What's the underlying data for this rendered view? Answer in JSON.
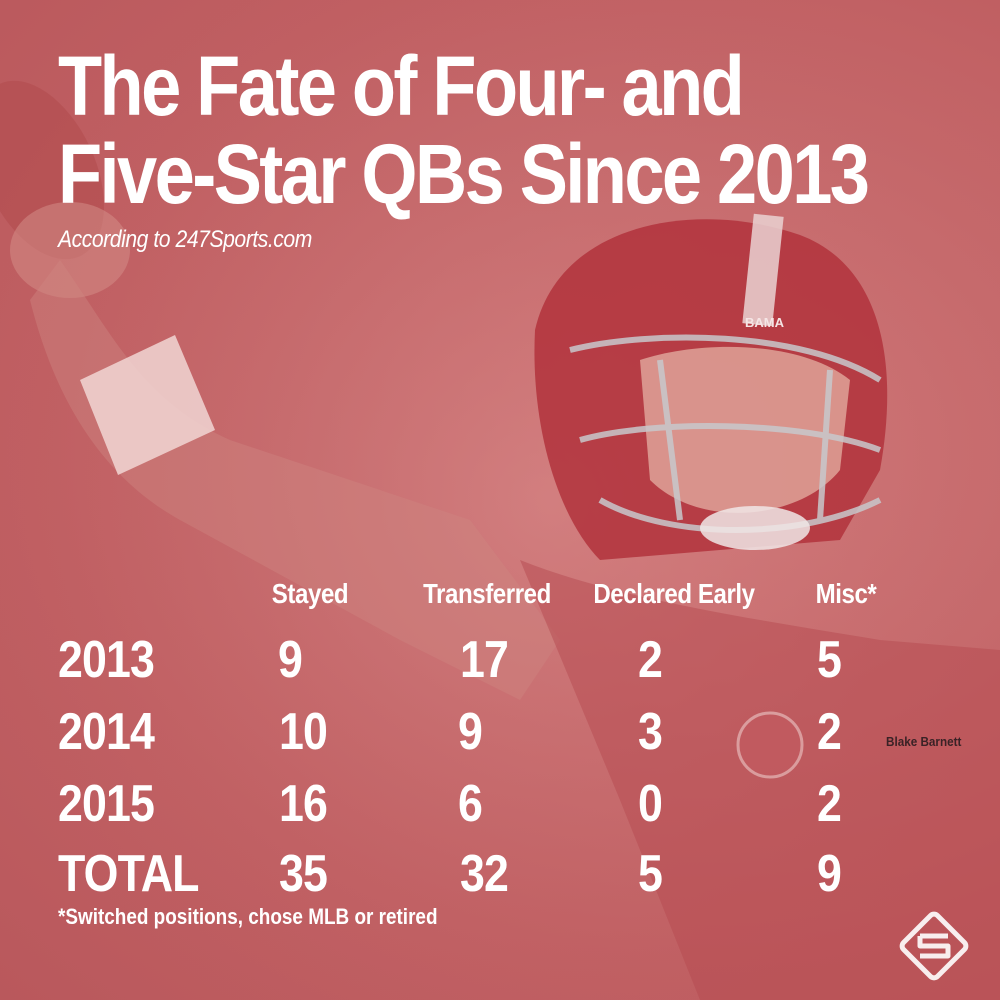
{
  "title_line1": "The Fate of Four- and",
  "title_line2": "Five-Star QBs Since 2013",
  "subtitle": "According to 247Sports.com",
  "photo_credit": "Blake Barnett",
  "footnote": "*Switched positions, chose MLB or retired",
  "helmet_text": "BAMA",
  "colors": {
    "background": "#c66a6c",
    "text": "#ffffff",
    "helmet": "#b2333c"
  },
  "chart_data": {
    "type": "table",
    "columns": [
      "Stayed",
      "Transferred",
      "Declared Early",
      "Misc*"
    ],
    "rows": [
      {
        "label": "2013",
        "values": [
          "9",
          "17",
          "2",
          "5"
        ]
      },
      {
        "label": "2014",
        "values": [
          "10",
          "9",
          "3",
          "2"
        ]
      },
      {
        "label": "2015",
        "values": [
          "16",
          "6",
          "0",
          "2"
        ]
      },
      {
        "label": "TOTAL",
        "values": [
          "35",
          "32",
          "5",
          "9"
        ]
      }
    ]
  }
}
